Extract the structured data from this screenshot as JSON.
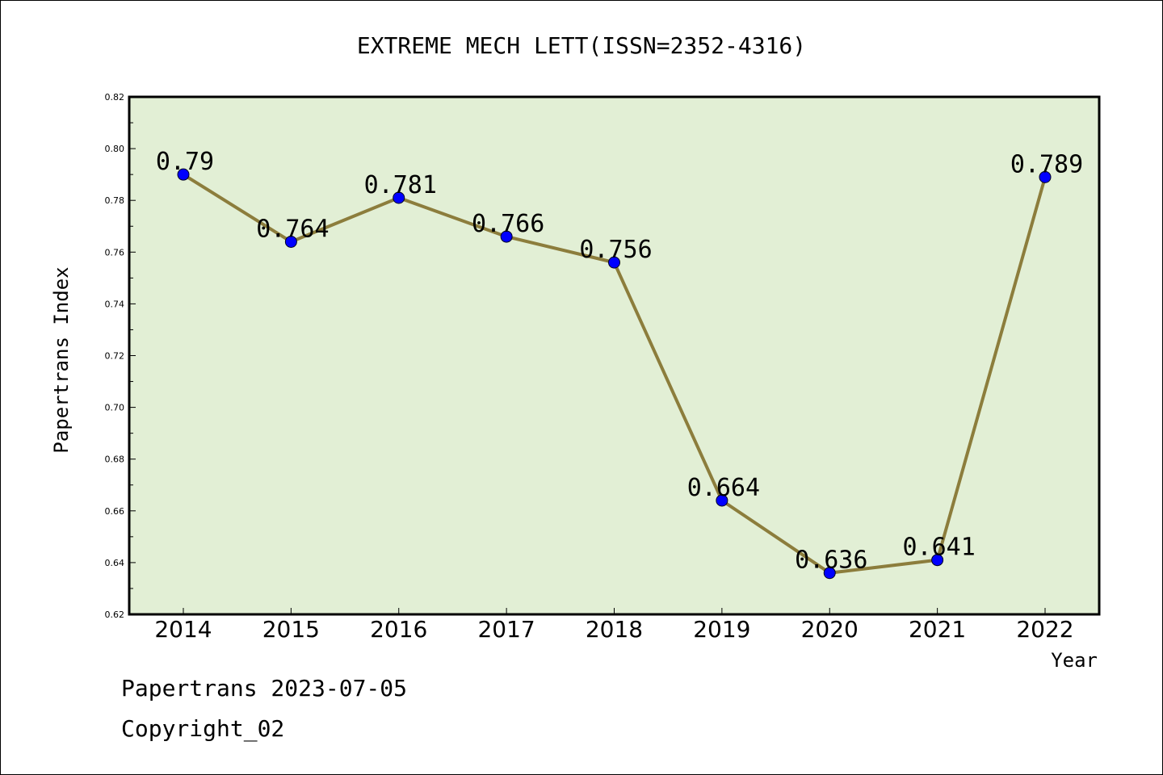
{
  "chart_data": {
    "type": "line",
    "title": "EXTREME MECH LETT(ISSN=2352-4316)",
    "xlabel": "Year",
    "ylabel": "Papertrans Index",
    "categories": [
      "2014",
      "2015",
      "2016",
      "2017",
      "2018",
      "2019",
      "2020",
      "2021",
      "2022"
    ],
    "values": [
      0.79,
      0.764,
      0.781,
      0.766,
      0.756,
      0.664,
      0.636,
      0.641,
      0.789
    ],
    "data_labels": [
      "0.79",
      "0.764",
      "0.781",
      "0.766",
      "0.756",
      "0.664",
      "0.636",
      "0.641",
      "0.789"
    ],
    "ylim": [
      0.62,
      0.82
    ],
    "yticks": [
      "0.62",
      "0.64",
      "0.66",
      "0.68",
      "0.70",
      "0.72",
      "0.74",
      "0.76",
      "0.78",
      "0.80",
      "0.82"
    ],
    "grid": false,
    "colors": {
      "plot_background": "#e2efd5",
      "line": "#8c7d3c",
      "marker": "#0000ff"
    }
  },
  "footer": {
    "source": "Papertrans 2023-07-05",
    "copyright": "Copyright_02"
  }
}
